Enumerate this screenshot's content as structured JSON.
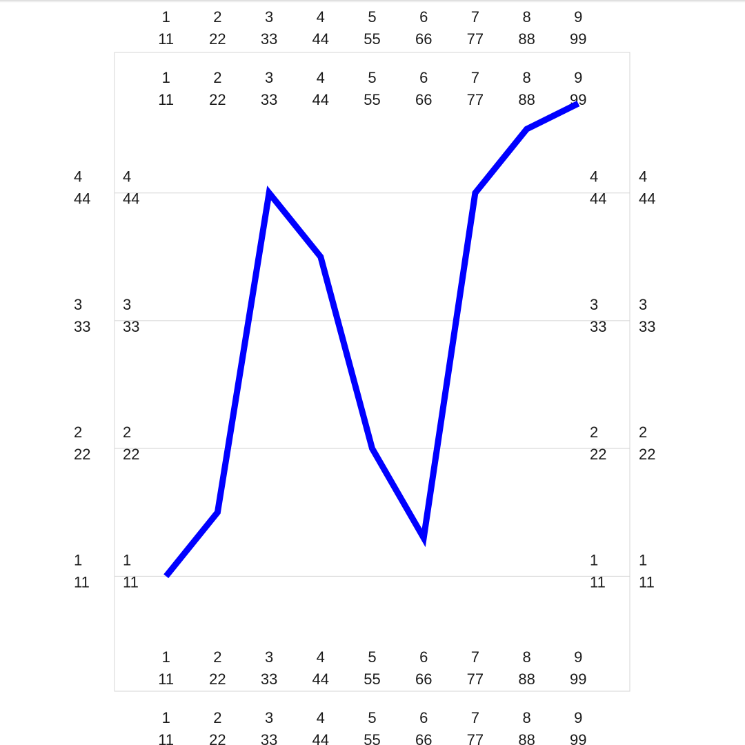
{
  "chart_data": {
    "type": "line",
    "title": "",
    "xlabel": "",
    "ylabel": "",
    "grid": true,
    "x": [
      1,
      2,
      3,
      4,
      5,
      6,
      7,
      8,
      9
    ],
    "x_tick_labels": [
      [
        "1",
        "11"
      ],
      [
        "2",
        "22"
      ],
      [
        "3",
        "33"
      ],
      [
        "4",
        "44"
      ],
      [
        "5",
        "55"
      ],
      [
        "6",
        "66"
      ],
      [
        "7",
        "77"
      ],
      [
        "8",
        "88"
      ],
      [
        "9",
        "99"
      ]
    ],
    "y_ticks": [
      1,
      2,
      3,
      4
    ],
    "y_tick_labels": [
      [
        "1",
        "11"
      ],
      [
        "2",
        "22"
      ],
      [
        "3",
        "33"
      ],
      [
        "4",
        "44"
      ]
    ],
    "xlim": [
      0,
      10
    ],
    "ylim": [
      0.1,
      5.1
    ],
    "series": [
      {
        "values": [
          1.0,
          1.5,
          4.0,
          3.5,
          2.0,
          1.3,
          4.0,
          4.5,
          4.7
        ],
        "color": "#0000ff"
      }
    ]
  }
}
